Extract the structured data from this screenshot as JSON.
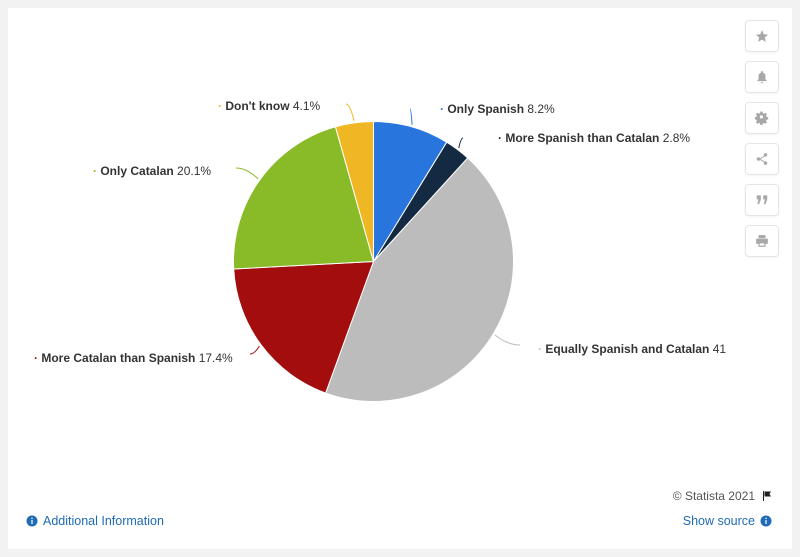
{
  "chart_data": {
    "type": "pie",
    "title": "",
    "slices": [
      {
        "label": "Only Spanish",
        "value": 8.2,
        "display": "8.2%",
        "color": "#2876dd"
      },
      {
        "label": "More Spanish than Catalan",
        "value": 2.8,
        "display": "2.8%",
        "color": "#142a42"
      },
      {
        "label": "Equally Spanish and Catalan",
        "value": 41,
        "display": "41",
        "color": "#bcbcbc"
      },
      {
        "label": "More Catalan than Spanish",
        "value": 17.4,
        "display": "17.4%",
        "color": "#a30d0e"
      },
      {
        "label": "Only Catalan",
        "value": 20.1,
        "display": "20.1%",
        "color": "#88bb27"
      },
      {
        "label": "Don't know",
        "value": 4.1,
        "display": "4.1%",
        "color": "#efb724"
      }
    ]
  },
  "toolbar": {
    "buttons": [
      {
        "name": "favorite",
        "icon": "star-icon"
      },
      {
        "name": "notification",
        "icon": "bell-icon"
      },
      {
        "name": "settings",
        "icon": "gear-icon"
      },
      {
        "name": "share",
        "icon": "share-icon"
      },
      {
        "name": "cite",
        "icon": "quote-icon"
      },
      {
        "name": "print",
        "icon": "print-icon"
      }
    ]
  },
  "footer": {
    "credit": "© Statista 2021",
    "additional_info": "Additional Information",
    "show_source": "Show source"
  }
}
